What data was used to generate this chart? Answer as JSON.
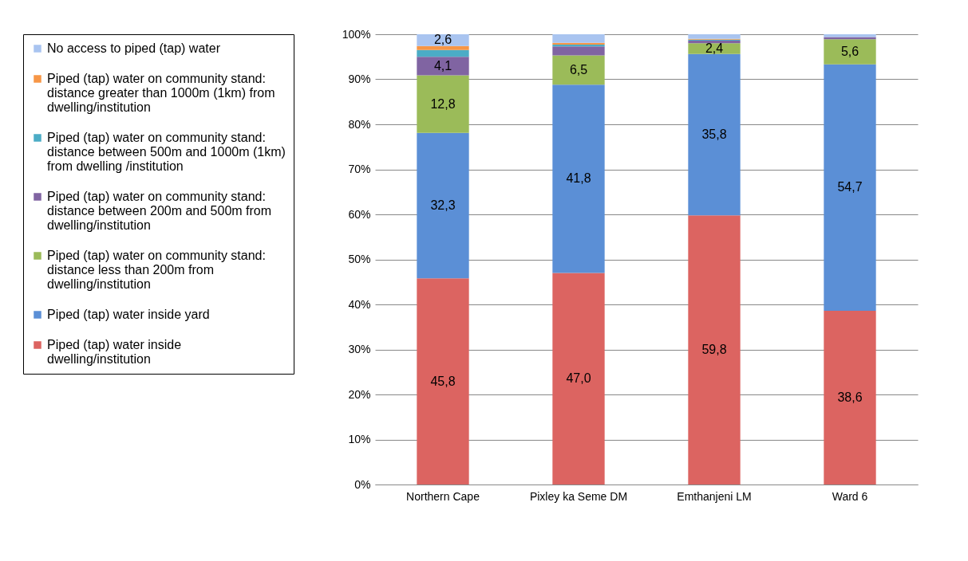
{
  "chart_data": {
    "type": "bar",
    "stacked": true,
    "categories": [
      "Northern Cape",
      "Pixley ka Seme DM",
      "Emthanjeni LM",
      "Ward 6"
    ],
    "series": [
      {
        "name": "Piped (tap) water inside dwelling/institution",
        "color": "#dc6461",
        "values": [
          45.8,
          47.0,
          59.8,
          38.6
        ],
        "value_labels": [
          "45,8",
          "47,0",
          "59,8",
          "38,6"
        ]
      },
      {
        "name": "Piped (tap) water inside yard",
        "color": "#5b8fd6",
        "values": [
          32.3,
          41.8,
          35.8,
          54.7
        ],
        "value_labels": [
          "32,3",
          "41,8",
          "35,8",
          "54,7"
        ]
      },
      {
        "name": "Piped (tap) water on community stand: distance less than 200m from dwelling/institution",
        "color": "#9bbb59",
        "values": [
          12.8,
          6.5,
          2.4,
          5.6
        ],
        "value_labels": [
          "12,8",
          "6,5",
          "2,4",
          "5,6"
        ]
      },
      {
        "name": "Piped (tap) water on community stand: distance between 200m and 500m from dwelling/institution",
        "color": "#8064a2",
        "values": [
          4.1,
          2.0,
          0.6,
          0.5
        ],
        "value_labels": [
          "4,1",
          null,
          null,
          null
        ]
      },
      {
        "name": "Piped (tap) water on community stand: distance between 500m and 1000m (1km) from dwelling /institution",
        "color": "#4bacc6",
        "values": [
          1.5,
          0.4,
          0.2,
          0.0
        ],
        "value_labels": [
          null,
          null,
          null,
          null
        ]
      },
      {
        "name": "Piped (tap) water on community stand: distance greater than 1000m (1km) from dwelling/institution",
        "color": "#f79646",
        "values": [
          0.9,
          0.4,
          0.2,
          0.0
        ],
        "value_labels": [
          null,
          null,
          null,
          null
        ]
      },
      {
        "name": "No access to piped (tap) water",
        "color": "#a9c4f0",
        "values": [
          2.6,
          1.9,
          1.0,
          0.6
        ],
        "value_labels": [
          "2,6",
          null,
          null,
          null
        ]
      }
    ],
    "ylim": [
      0,
      100
    ],
    "yticks": [
      {
        "value": 0,
        "label": "0%"
      },
      {
        "value": 10,
        "label": "10%"
      },
      {
        "value": 20,
        "label": "20%"
      },
      {
        "value": 30,
        "label": "30%"
      },
      {
        "value": 40,
        "label": "40%"
      },
      {
        "value": 50,
        "label": "50%"
      },
      {
        "value": 60,
        "label": "60%"
      },
      {
        "value": 70,
        "label": "70%"
      },
      {
        "value": 80,
        "label": "80%"
      },
      {
        "value": 90,
        "label": "90%"
      },
      {
        "value": 100,
        "label": "100%"
      }
    ],
    "grid": "y",
    "legend": "left"
  }
}
